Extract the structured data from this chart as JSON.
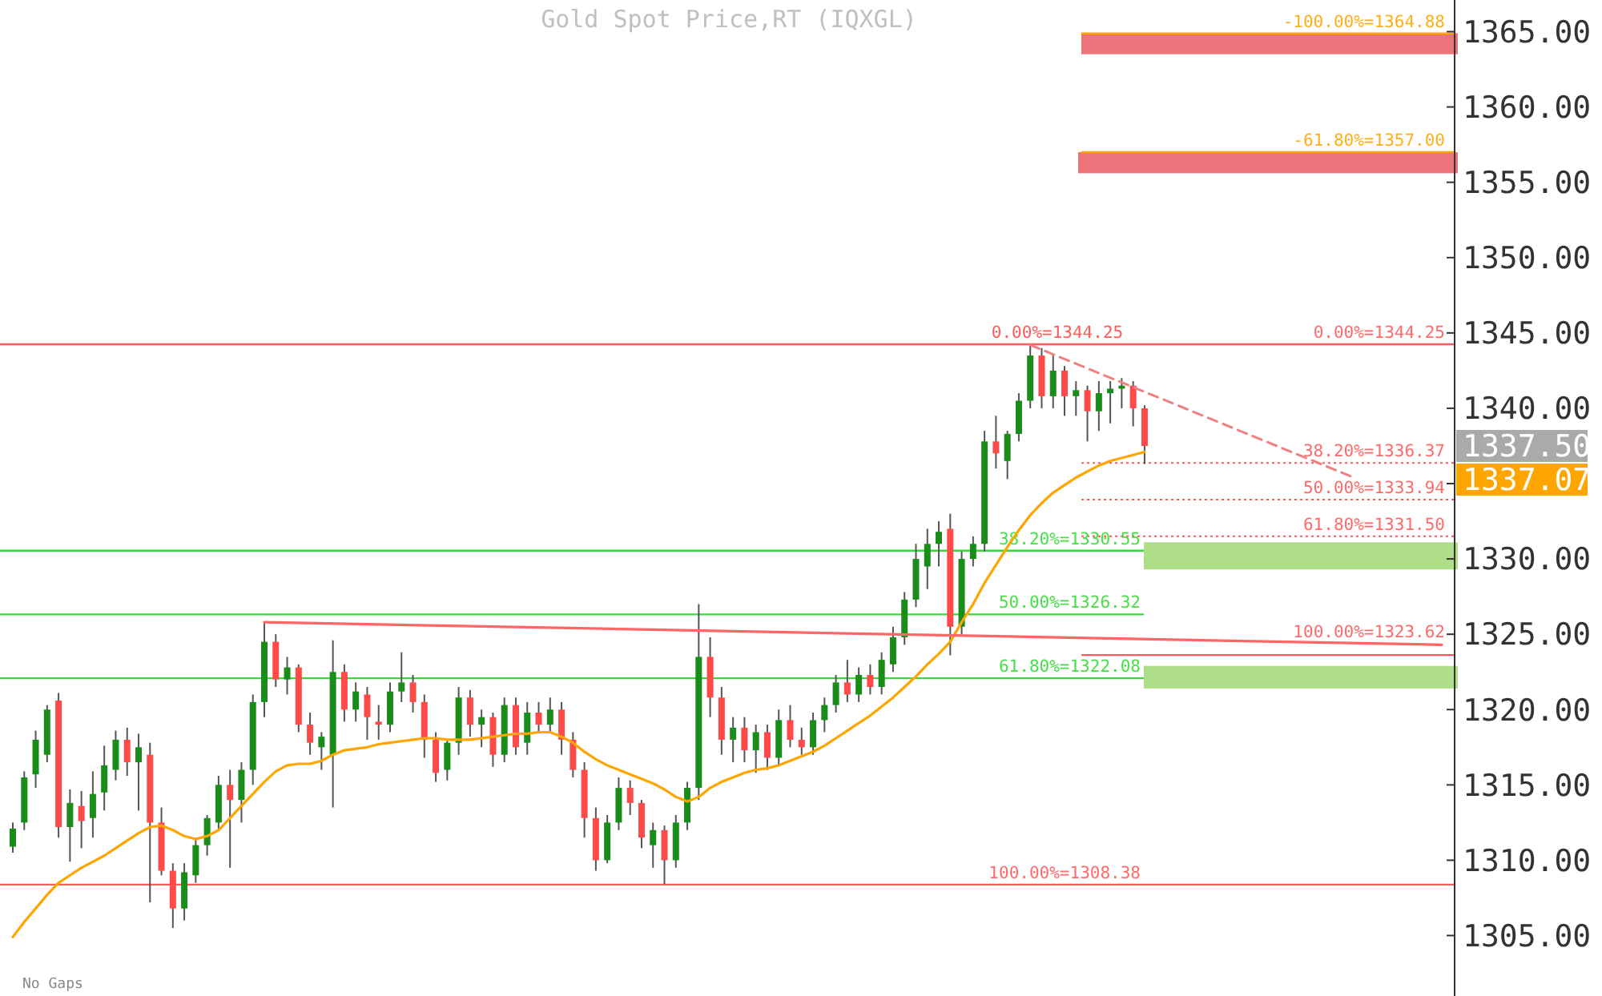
{
  "chart_data": {
    "type": "candlestick",
    "title": "Gold Spot Price,RT (IQXGL)",
    "categories": [
      null,
      null,
      null,
      null,
      null,
      null,
      null,
      null,
      null,
      null,
      null,
      null,
      null,
      null,
      null,
      null,
      null,
      null,
      null,
      null,
      null,
      null,
      null,
      null,
      null,
      null,
      null,
      null,
      null,
      null,
      null,
      null,
      null,
      null,
      null,
      null,
      null,
      null,
      null,
      null,
      null,
      null,
      null,
      null,
      null,
      null,
      null,
      null,
      null,
      null,
      null,
      null,
      null,
      null,
      null,
      null,
      null,
      null,
      null,
      null,
      null,
      null,
      null,
      null,
      null,
      null,
      null,
      null,
      null,
      null,
      null,
      null,
      null,
      null,
      null,
      null,
      null,
      null,
      null,
      null,
      null,
      null,
      null,
      null,
      null,
      null,
      null,
      null,
      null,
      null,
      null,
      null,
      null,
      null,
      null,
      null,
      null,
      null,
      null,
      null,
      null,
      null,
      null,
      null,
      null,
      null,
      null,
      null,
      null,
      null,
      null,
      null,
      null,
      null,
      null,
      null,
      null,
      null,
      null,
      null,
      null,
      null,
      null,
      null,
      null,
      null
    ],
    "series": [
      {
        "ohlc": [
          [
            1310.9,
            1312.5,
            1310.5,
            1312.1
          ],
          [
            1312.5,
            1315.9,
            1312.0,
            1315.5
          ],
          [
            1315.7,
            1318.6,
            1314.8,
            1318.0
          ],
          [
            1317.0,
            1320.3,
            1316.5,
            1320.0
          ],
          [
            1320.6,
            1321.1,
            1311.5,
            1312.2
          ],
          [
            1312.2,
            1314.7,
            1309.9,
            1313.8
          ],
          [
            1313.6,
            1314.6,
            1310.8,
            1312.6
          ],
          [
            1312.8,
            1315.9,
            1311.5,
            1314.4
          ],
          [
            1314.5,
            1317.6,
            1313.3,
            1316.3
          ],
          [
            1316.0,
            1318.6,
            1315.3,
            1318.0
          ],
          [
            1318.0,
            1318.8,
            1315.6,
            1316.5
          ],
          [
            1316.5,
            1318.4,
            1313.3,
            1317.5
          ],
          [
            1317.0,
            1317.8,
            1307.2,
            1312.5
          ],
          [
            1312.5,
            1313.5,
            1309.0,
            1309.3
          ],
          [
            1309.3,
            1309.8,
            1305.5,
            1306.8
          ],
          [
            1306.8,
            1309.8,
            1306.0,
            1309.2
          ],
          [
            1309.0,
            1311.5,
            1308.5,
            1311.0
          ],
          [
            1311.0,
            1313.0,
            1310.3,
            1312.8
          ],
          [
            1312.5,
            1315.6,
            1312.0,
            1315.0
          ],
          [
            1315.0,
            1316.0,
            1309.5,
            1314.0
          ],
          [
            1314.0,
            1316.5,
            1312.5,
            1316.0
          ],
          [
            1316.0,
            1321.0,
            1315.0,
            1320.5
          ],
          [
            1320.5,
            1325.8,
            1319.5,
            1324.5
          ],
          [
            1324.5,
            1325.0,
            1321.5,
            1322.0
          ],
          [
            1322.0,
            1323.5,
            1321.0,
            1322.8
          ],
          [
            1322.8,
            1323.0,
            1318.5,
            1319.0
          ],
          [
            1319.0,
            1319.8,
            1317.0,
            1317.8
          ],
          [
            1317.5,
            1318.5,
            1316.0,
            1318.2
          ],
          [
            1317.0,
            1324.6,
            1313.5,
            1322.5
          ],
          [
            1322.5,
            1323.0,
            1319.2,
            1320.0
          ],
          [
            1320.0,
            1321.8,
            1319.2,
            1321.2
          ],
          [
            1321.0,
            1321.5,
            1318.0,
            1319.5
          ],
          [
            1319.2,
            1320.3,
            1318.0,
            1319.0
          ],
          [
            1319.0,
            1321.8,
            1318.5,
            1321.2
          ],
          [
            1321.2,
            1323.8,
            1320.5,
            1321.8
          ],
          [
            1321.8,
            1322.3,
            1319.8,
            1320.5
          ],
          [
            1320.5,
            1321.0,
            1316.8,
            1318.0
          ],
          [
            1318.0,
            1318.5,
            1315.2,
            1315.8
          ],
          [
            1316.0,
            1318.0,
            1315.3,
            1317.8
          ],
          [
            1317.8,
            1321.5,
            1317.0,
            1320.8
          ],
          [
            1320.8,
            1321.3,
            1318.2,
            1319.0
          ],
          [
            1319.0,
            1320.0,
            1317.5,
            1319.5
          ],
          [
            1319.5,
            1319.8,
            1316.2,
            1317.0
          ],
          [
            1317.0,
            1320.8,
            1316.5,
            1320.3
          ],
          [
            1320.3,
            1320.8,
            1317.0,
            1317.5
          ],
          [
            1317.8,
            1320.5,
            1317.0,
            1319.8
          ],
          [
            1319.8,
            1320.5,
            1318.5,
            1319.0
          ],
          [
            1319.0,
            1320.8,
            1318.5,
            1320.0
          ],
          [
            1320.0,
            1320.5,
            1317.0,
            1318.0
          ],
          [
            1318.0,
            1318.5,
            1315.5,
            1316.0
          ],
          [
            1316.0,
            1316.5,
            1311.5,
            1312.8
          ],
          [
            1312.8,
            1313.5,
            1309.3,
            1310.0
          ],
          [
            1310.0,
            1313.0,
            1309.8,
            1312.5
          ],
          [
            1312.5,
            1315.5,
            1312.0,
            1314.8
          ],
          [
            1314.8,
            1315.3,
            1313.0,
            1313.8
          ],
          [
            1313.8,
            1314.0,
            1310.8,
            1311.5
          ],
          [
            1311.0,
            1312.5,
            1309.5,
            1312.0
          ],
          [
            1312.0,
            1312.3,
            1308.4,
            1310.0
          ],
          [
            1310.0,
            1313.0,
            1309.5,
            1312.5
          ],
          [
            1312.5,
            1315.2,
            1312.0,
            1314.8
          ],
          [
            1314.8,
            1327.0,
            1314.0,
            1323.5
          ],
          [
            1323.5,
            1324.8,
            1319.5,
            1320.8
          ],
          [
            1320.8,
            1321.5,
            1317.0,
            1318.0
          ],
          [
            1318.0,
            1319.5,
            1316.5,
            1318.8
          ],
          [
            1318.8,
            1319.5,
            1316.5,
            1317.3
          ],
          [
            1317.3,
            1319.0,
            1315.8,
            1318.5
          ],
          [
            1318.5,
            1319.0,
            1316.0,
            1316.8
          ],
          [
            1316.8,
            1320.0,
            1316.3,
            1319.3
          ],
          [
            1319.3,
            1320.3,
            1317.5,
            1318.0
          ],
          [
            1318.0,
            1318.8,
            1317.0,
            1317.5
          ],
          [
            1317.5,
            1319.8,
            1317.0,
            1319.3
          ],
          [
            1319.3,
            1320.8,
            1318.5,
            1320.3
          ],
          [
            1320.3,
            1322.3,
            1319.8,
            1321.8
          ],
          [
            1321.8,
            1323.3,
            1320.5,
            1321.0
          ],
          [
            1321.0,
            1322.8,
            1320.5,
            1322.3
          ],
          [
            1322.3,
            1323.0,
            1321.0,
            1321.5
          ],
          [
            1321.5,
            1323.8,
            1321.0,
            1323.3
          ],
          [
            1323.0,
            1325.5,
            1322.5,
            1324.8
          ],
          [
            1324.8,
            1327.8,
            1324.3,
            1327.3
          ],
          [
            1327.3,
            1331.0,
            1326.8,
            1330.0
          ],
          [
            1329.5,
            1332.0,
            1328.0,
            1331.0
          ],
          [
            1331.0,
            1332.5,
            1329.5,
            1331.8
          ],
          [
            1332.0,
            1333.0,
            1323.6,
            1325.5
          ],
          [
            1325.5,
            1330.5,
            1325.0,
            1330.0
          ],
          [
            1330.0,
            1331.5,
            1329.5,
            1331.0
          ],
          [
            1331.0,
            1338.5,
            1330.5,
            1337.8
          ],
          [
            1337.8,
            1339.5,
            1336.0,
            1337.0
          ],
          [
            1336.5,
            1338.5,
            1335.3,
            1338.3
          ],
          [
            1338.3,
            1341.0,
            1337.8,
            1340.5
          ],
          [
            1340.5,
            1344.25,
            1340.0,
            1343.5
          ],
          [
            1343.5,
            1344.0,
            1340.0,
            1340.8
          ],
          [
            1340.8,
            1343.5,
            1340.0,
            1342.5
          ],
          [
            1342.5,
            1342.8,
            1339.5,
            1340.8
          ],
          [
            1340.8,
            1341.8,
            1339.5,
            1341.2
          ],
          [
            1341.2,
            1341.5,
            1337.8,
            1339.8
          ],
          [
            1339.8,
            1341.8,
            1338.5,
            1341.0
          ],
          [
            1341.0,
            1341.8,
            1339.0,
            1341.3
          ],
          [
            1341.3,
            1342.0,
            1340.0,
            1341.5
          ],
          [
            1341.5,
            1341.8,
            1338.8,
            1340.0
          ],
          [
            1340.0,
            1340.2,
            1336.3,
            1337.5
          ],
          null,
          null,
          null,
          null,
          null,
          null,
          null,
          null,
          null,
          null,
          null,
          null,
          null,
          null,
          null,
          null,
          null,
          null,
          null,
          null,
          null,
          null,
          null,
          null,
          null,
          null
        ]
      },
      {
        "type": "line",
        "color": "#ffa500",
        "values": [
          1304.9,
          1305.9,
          1306.8,
          1307.7,
          1308.5,
          1309.0,
          1309.5,
          1309.9,
          1310.3,
          1310.8,
          1311.3,
          1311.8,
          1312.2,
          1312.3,
          1312.0,
          1311.6,
          1311.4,
          1311.6,
          1312.0,
          1312.8,
          1313.6,
          1314.4,
          1315.2,
          1315.9,
          1316.3,
          1316.4,
          1316.4,
          1316.6,
          1317.0,
          1317.3,
          1317.4,
          1317.5,
          1317.7,
          1317.8,
          1317.9,
          1318.0,
          1318.1,
          1318.1,
          1318.0,
          1318.0,
          1318.0,
          1318.1,
          1318.2,
          1318.3,
          1318.4,
          1318.4,
          1318.5,
          1318.5,
          1318.2,
          1317.8,
          1317.2,
          1316.7,
          1316.3,
          1316.0,
          1315.7,
          1315.4,
          1315.1,
          1314.7,
          1314.2,
          1313.9,
          1314.2,
          1314.8,
          1315.2,
          1315.5,
          1315.8,
          1316.0,
          1316.1,
          1316.3,
          1316.6,
          1316.9,
          1317.2,
          1317.6,
          1318.1,
          1318.6,
          1319.1,
          1319.6,
          1320.2,
          1320.8,
          1321.5,
          1322.2,
          1323.0,
          1323.7,
          1324.5,
          1325.8,
          1327.0,
          1328.4,
          1329.6,
          1330.8,
          1331.9,
          1332.9,
          1333.7,
          1334.4,
          1334.9,
          1335.4,
          1335.8,
          1336.2,
          1336.5,
          1336.7,
          1336.9,
          1337.1,
          null,
          null,
          null,
          null,
          null,
          null,
          null,
          null,
          null,
          null,
          null,
          null,
          null,
          null,
          null,
          null,
          null,
          null,
          null,
          null,
          null,
          null,
          null,
          null,
          null,
          null
        ]
      },
      {
        "type": "line",
        "color": "#ff6666",
        "values": [
          null,
          null,
          null,
          null,
          null,
          null,
          null,
          null,
          null,
          null,
          null,
          null,
          null,
          null,
          null,
          null,
          null,
          null,
          null,
          null,
          null,
          null,
          1325.8,
          null,
          null,
          null,
          null,
          null,
          null,
          null,
          null,
          null,
          null,
          null,
          null,
          null,
          null,
          null,
          null,
          null,
          null,
          null,
          null,
          null,
          null,
          null,
          null,
          null,
          null,
          null,
          null,
          null,
          null,
          null,
          null,
          null,
          null,
          null,
          null,
          null,
          null,
          null,
          null,
          null,
          null,
          null,
          null,
          null,
          null,
          null,
          null,
          null,
          null,
          null,
          null,
          null,
          null,
          null,
          null,
          null,
          null,
          null,
          null,
          null,
          null,
          null,
          null,
          null,
          null,
          null,
          null,
          null,
          null,
          null,
          null,
          null,
          null,
          null,
          null,
          null,
          null,
          null,
          null,
          null,
          null,
          null,
          null,
          null,
          null,
          null,
          null,
          null,
          null,
          null,
          null,
          null,
          null,
          null,
          null,
          null,
          null,
          null,
          null,
          null,
          null,
          1324.3
        ]
      },
      {
        "type": "line",
        "color": "#f08080",
        "line_style": "dashed",
        "values": [
          null,
          null,
          null,
          null,
          null,
          null,
          null,
          null,
          null,
          null,
          null,
          null,
          null,
          null,
          null,
          null,
          null,
          null,
          null,
          null,
          null,
          null,
          null,
          null,
          null,
          null,
          null,
          null,
          null,
          null,
          null,
          null,
          null,
          null,
          null,
          null,
          null,
          null,
          null,
          null,
          null,
          null,
          null,
          null,
          null,
          null,
          null,
          null,
          null,
          null,
          null,
          null,
          null,
          null,
          null,
          null,
          null,
          null,
          null,
          null,
          null,
          null,
          null,
          null,
          null,
          null,
          null,
          null,
          null,
          null,
          null,
          null,
          null,
          null,
          null,
          null,
          null,
          null,
          null,
          null,
          null,
          null,
          null,
          null,
          null,
          null,
          null,
          null,
          null,
          1344.2,
          null,
          null,
          null,
          null,
          null,
          null,
          null,
          null,
          null,
          null,
          null,
          null,
          null,
          null,
          null,
          null,
          null,
          null,
          null,
          null,
          null,
          null,
          null,
          null,
          null,
          null,
          null,
          1335.5,
          null,
          null,
          null,
          null,
          null,
          null,
          null,
          null
        ]
      }
    ],
    "ylim": [
      1301.2,
      1367.1
    ],
    "yticks": [
      {
        "value": 1305,
        "label": "1305.00"
      },
      {
        "value": 1310,
        "label": "1310.00"
      },
      {
        "value": 1315,
        "label": "1315.00"
      },
      {
        "value": 1320,
        "label": "1320.00"
      },
      {
        "value": 1325,
        "label": "1325.00"
      },
      {
        "value": 1330,
        "label": "1330.00"
      },
      {
        "value": 1335,
        "label": null
      },
      {
        "value": 1340,
        "label": "1340.00"
      },
      {
        "value": 1345,
        "label": "1345.00"
      },
      {
        "value": 1350,
        "label": "1350.00"
      },
      {
        "value": 1355,
        "label": "1355.00"
      },
      {
        "value": 1360,
        "label": "1360.00"
      },
      {
        "value": 1365,
        "label": "1365.00"
      }
    ],
    "tick_labels": "y",
    "ref_lines": [
      {
        "axis": "y",
        "value": 1364.88,
        "label": "-100.00%=1364.88",
        "color": "#ffa500"
      },
      {
        "axis": "y",
        "value": 1357.0,
        "label": "-61.80%=1357.00",
        "color": "#ffa500"
      },
      {
        "axis": "y",
        "value": 1344.25,
        "label": "0.00%=1344.25",
        "color": "#ff5a5a"
      },
      {
        "axis": "y",
        "value": 1336.37,
        "label": "38.20%=1336.37",
        "color": "#ff5a5a",
        "line_style": "dotted"
      },
      {
        "axis": "y",
        "value": 1333.94,
        "label": "50.00%=1333.94",
        "color": "#ff5a5a",
        "line_style": "dotted"
      },
      {
        "axis": "y",
        "value": 1331.5,
        "label": "61.80%=1331.50",
        "color": "#ff5a5a",
        "line_style": "dotted"
      },
      {
        "axis": "y",
        "value": 1330.55,
        "label": "38.20%=1330.55",
        "color": "#33dd33"
      },
      {
        "axis": "y",
        "value": 1326.32,
        "label": "50.00%=1326.32",
        "color": "#33dd33"
      },
      {
        "axis": "y",
        "value": 1322.08,
        "label": "61.80%=1322.08",
        "color": "#33dd33"
      },
      {
        "axis": "y",
        "value": 1323.62,
        "label": "100.00%=1323.62",
        "color": "#ff5a5a"
      },
      {
        "axis": "y",
        "value": 1308.38,
        "label": "100.00%=1308.38",
        "color": "#ff5a5a"
      }
    ],
    "bands": [
      {
        "axis": "y",
        "from": 1363.5,
        "to": 1364.9,
        "color": "#ec737a"
      },
      {
        "axis": "y",
        "from": 1355.6,
        "to": 1357.0,
        "color": "#ec737a"
      },
      {
        "axis": "y",
        "from": 1329.3,
        "to": 1331.1,
        "color": "#aede88"
      },
      {
        "axis": "y",
        "from": 1321.4,
        "to": 1322.9,
        "color": "#aede88"
      }
    ],
    "annotations": [
      "No Gaps",
      {
        "text": "0.00%=1344.25",
        "y": 1344.25
      },
      "1337.50",
      "1337.07"
    ]
  }
}
